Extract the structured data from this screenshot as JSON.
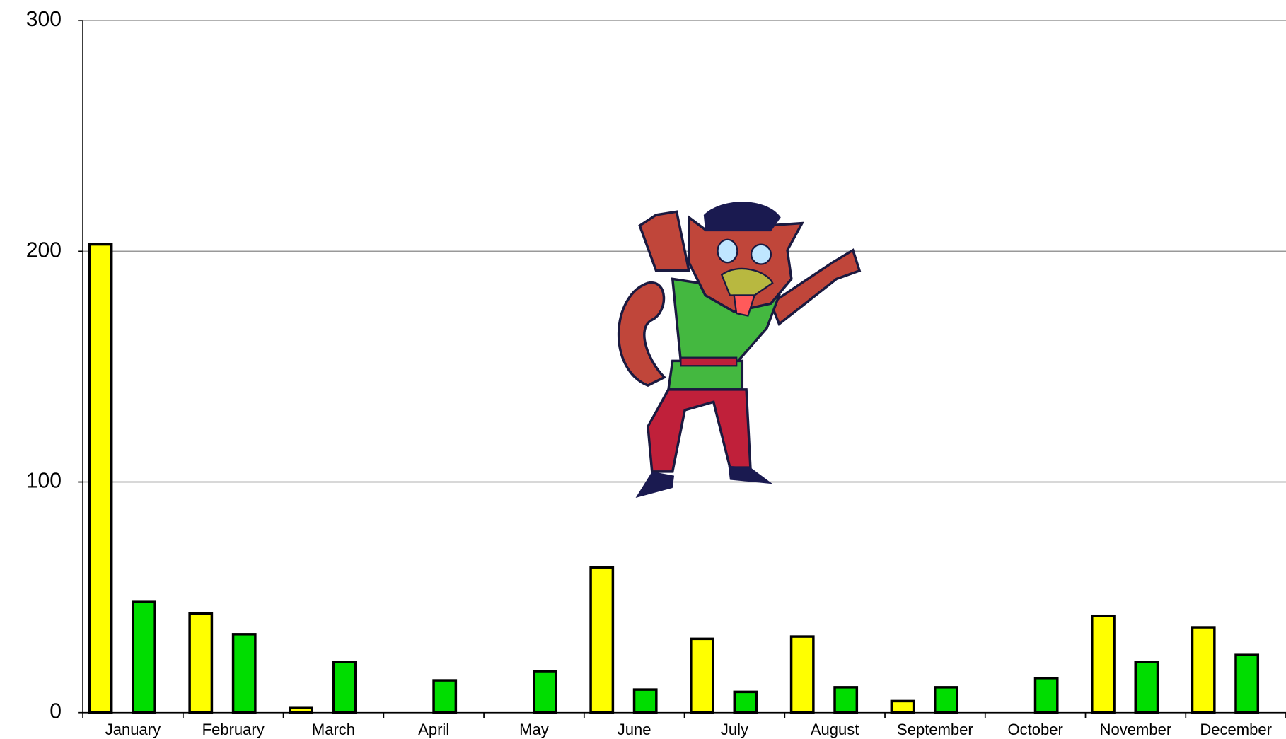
{
  "chart_data": {
    "type": "bar",
    "categories": [
      "January",
      "February",
      "March",
      "April",
      "May",
      "June",
      "July",
      "August",
      "September",
      "October",
      "November",
      "December"
    ],
    "series": [
      {
        "color": "#ffff00",
        "values": [
          203,
          43,
          2,
          null,
          null,
          63,
          32,
          33,
          5,
          null,
          42,
          37
        ]
      },
      {
        "color": "#00dd00",
        "values": [
          48,
          34,
          22,
          14,
          18,
          10,
          9,
          11,
          11,
          15,
          22,
          25
        ]
      }
    ],
    "ylim": [
      0,
      300
    ],
    "yticks": [
      0,
      100,
      200,
      300
    ],
    "grid": true
  }
}
